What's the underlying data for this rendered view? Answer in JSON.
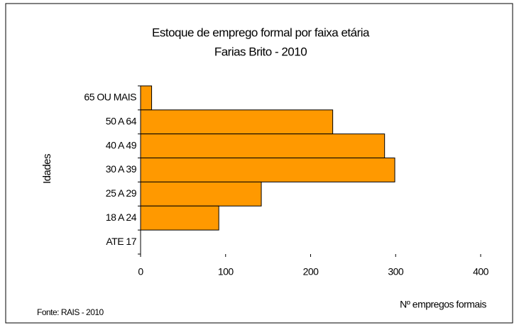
{
  "chart_data": {
    "type": "barh",
    "title": "Estoque de emprego formal por faixa etária",
    "subtitle": "Farias Brito - 2010",
    "y_label": "Idades",
    "x_label": "Nº empregos formais",
    "source": "Fonte: RAIS - 2010",
    "categories": [
      "65 OU MAIS",
      "50 A 64",
      "40 A 49",
      "30 A 39",
      "25 A 29",
      "18 A 24",
      "ATE 17"
    ],
    "values": [
      13,
      226,
      287,
      299,
      142,
      92,
      0
    ],
    "color": "#FF9900",
    "xlim": [
      0,
      400
    ],
    "xticks": [
      0,
      100,
      200,
      300,
      400
    ],
    "grid": false
  }
}
